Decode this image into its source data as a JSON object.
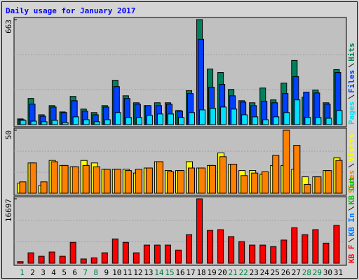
{
  "chart_data": [
    {
      "type": "bar",
      "title": "Daily usage for January 2017",
      "ylim": [
        0,
        663
      ],
      "yticks": [
        663
      ],
      "series": [
        {
          "name": "Hits",
          "color": "#00805c",
          "values": [
            36,
            165,
            62,
            120,
            80,
            178,
            98,
            76,
            120,
            280,
            182,
            138,
            120,
            138,
            138,
            89,
            214,
            663,
            351,
            329,
            222,
            151,
            138,
            231,
            156,
            262,
            405,
            173,
            218,
            138,
            347
          ]
        },
        {
          "name": "Files",
          "color": "#0040ff",
          "values": [
            31,
            129,
            53,
            111,
            76,
            151,
            85,
            62,
            111,
            240,
            165,
            129,
            120,
            120,
            129,
            85,
            196,
            538,
            236,
            254,
            182,
            142,
            120,
            147,
            138,
            196,
            303,
            205,
            200,
            129,
            329
          ]
        },
        {
          "name": "Pages",
          "color": "#00e0ff",
          "values": [
            27,
            22,
            18,
            27,
            13,
            49,
            31,
            18,
            31,
            76,
            45,
            45,
            58,
            67,
            67,
            45,
            76,
            93,
            102,
            111,
            98,
            62,
            49,
            31,
            49,
            76,
            156,
            45,
            45,
            40,
            89
          ]
        }
      ]
    },
    {
      "type": "bar",
      "ylim": [
        0,
        50
      ],
      "yticks": [
        50
      ],
      "series": [
        {
          "name": "Visits",
          "color": "#ffff00",
          "values": [
            8,
            24,
            6,
            26,
            22,
            21,
            26,
            24,
            19,
            19,
            19,
            16,
            20,
            25,
            18,
            18,
            25,
            20,
            22,
            32,
            23,
            18,
            18,
            15,
            22,
            22,
            19,
            13,
            13,
            18,
            28
          ]
        },
        {
          "name": "Sites",
          "color": "#ff8000",
          "values": [
            9,
            24,
            9,
            25,
            22,
            21,
            22,
            21,
            19,
            19,
            18,
            19,
            20,
            25,
            17,
            18,
            20,
            20,
            22,
            29,
            23,
            14,
            16,
            17,
            30,
            50,
            38,
            7,
            13,
            18,
            26
          ]
        }
      ]
    },
    {
      "type": "bar",
      "ylim": [
        0,
        16697
      ],
      "yticks": [
        16697
      ],
      "categories": [
        "1",
        "2",
        "3",
        "4",
        "5",
        "6",
        "7",
        "8",
        "9",
        "10",
        "11",
        "12",
        "13",
        "14",
        "15",
        "16",
        "17",
        "18",
        "19",
        "20",
        "21",
        "22",
        "23",
        "24",
        "25",
        "26",
        "27",
        "28",
        "29",
        "30",
        "31"
      ],
      "category_colors": [
        "#008040",
        "#000000",
        "#000000",
        "#000000",
        "#000000",
        "#000000",
        "#008040",
        "#008040",
        "#000000",
        "#000000",
        "#000000",
        "#000000",
        "#000000",
        "#008040",
        "#008040",
        "#000000",
        "#000000",
        "#000000",
        "#000000",
        "#000000",
        "#008040",
        "#008040",
        "#000000",
        "#000000",
        "#000000",
        "#000000",
        "#000000",
        "#008040",
        "#008040",
        "#000000",
        "#000000"
      ],
      "series": [
        {
          "name": "KB F",
          "color": "#ff0000",
          "values": [
            400,
            2700,
            1800,
            2900,
            1800,
            5400,
            1100,
            1400,
            2700,
            6300,
            5400,
            2700,
            4700,
            4700,
            4700,
            3400,
            7400,
            16697,
            8500,
            8700,
            6900,
            5600,
            4700,
            4700,
            4300,
            6000,
            9200,
            7400,
            8700,
            5200,
            9800
          ]
        },
        {
          "name": "KB In",
          "color": "#0080ff",
          "values": [
            0,
            0,
            0,
            0,
            0,
            0,
            0,
            0,
            0,
            0,
            0,
            0,
            0,
            0,
            0,
            0,
            0,
            0,
            0,
            0,
            0,
            0,
            0,
            0,
            0,
            0,
            0,
            0,
            0,
            0,
            0
          ]
        },
        {
          "name": "KB Out",
          "color": "#00c000",
          "values": [
            0,
            0,
            0,
            0,
            0,
            0,
            0,
            0,
            0,
            0,
            0,
            0,
            0,
            0,
            0,
            0,
            0,
            0,
            0,
            0,
            0,
            0,
            0,
            0,
            0,
            0,
            0,
            0,
            0,
            0,
            0
          ]
        }
      ]
    }
  ]
}
